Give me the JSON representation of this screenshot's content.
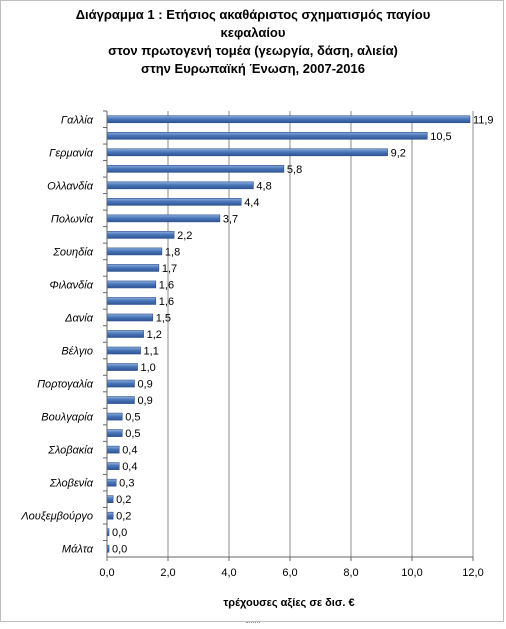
{
  "chart_data": {
    "type": "bar",
    "orientation": "horizontal",
    "title": "Διάγραμμα 1  : Ετήσιος ακαθάριστος σχηματισμός παγίου κεφαλαίου",
    "title_lines": [
      "Διάγραμμα 1  : Ετήσιος ακαθάριστος σχηματισμός παγίου",
      "κεφαλαίου",
      "στον πρωτογενή τομέα (γεωργία, δάση, αλιεία)",
      "στην Ευρωπαϊκή Ένωση, 2007-2016"
    ],
    "xlabel": "τρέχουσες αξίες σε δισ. €",
    "ylabel": "",
    "xlim": [
      0,
      12
    ],
    "x_ticks": [
      "0,0",
      "2,0",
      "4,0",
      "6,0",
      "8,0",
      "10,0",
      "12,0"
    ],
    "grid": "vertical gridlines",
    "legend": "none",
    "bar_color": "#4a76b8",
    "categories": [
      "Γαλλία",
      "",
      "Γερμανία",
      "",
      "Ολλανδία",
      "",
      "Πολωνία",
      "",
      "Σουηδία",
      "",
      "Φιλανδία",
      "",
      "Δανία",
      "",
      "Βέλγιο",
      "",
      "Πορτογαλία",
      "",
      "Βουλγαρία",
      "",
      "Σλοβακία",
      "",
      "Σλοβενία",
      "",
      "Λουξεμβούργο",
      "",
      "Μάλτα"
    ],
    "values": [
      11.9,
      10.5,
      9.2,
      5.8,
      4.8,
      4.4,
      3.7,
      2.2,
      1.8,
      1.7,
      1.6,
      1.6,
      1.5,
      1.2,
      1.1,
      1.0,
      0.9,
      0.9,
      0.5,
      0.5,
      0.4,
      0.4,
      0.3,
      0.2,
      0.2,
      0.0,
      0.0
    ],
    "value_labels": [
      "11,9",
      "10,5",
      "9,2",
      "5,8",
      "4,8",
      "4,4",
      "3,7",
      "2,2",
      "1,8",
      "1,7",
      "1,6",
      "1,6",
      "1,5",
      "1,2",
      "1,1",
      "1,0",
      "0,9",
      "0,9",
      "0,5",
      "0,5",
      "0,4",
      "0,4",
      "0,3",
      "0,2",
      "0,2",
      "0,0",
      "0,0"
    ]
  }
}
